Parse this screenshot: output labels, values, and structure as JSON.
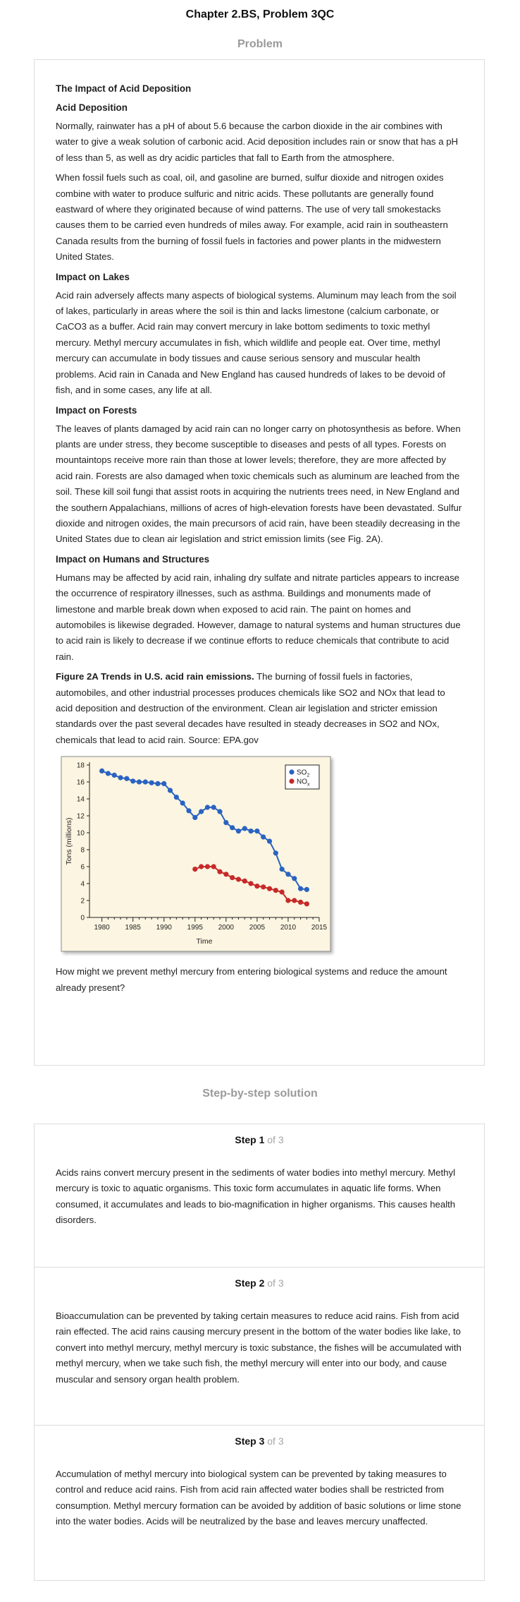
{
  "page": {
    "title": "Chapter 2.BS, Problem 3QC",
    "problem_heading": "Problem",
    "solution_heading": "Step-by-step solution"
  },
  "problem": {
    "main_title": "The Impact of Acid Deposition",
    "sections": [
      {
        "heading": "Acid Deposition",
        "paragraphs": [
          "Normally, rainwater has a pH of about 5.6 because the carbon dioxide in the air combines with water to give a weak solution of carbonic acid. Acid deposition includes rain or snow that has a pH of less than 5, as well as dry acidic particles that fall to Earth from the atmosphere.",
          "When fossil fuels such as coal, oil, and gasoline are burned, sulfur dioxide and nitrogen oxides combine with water to produce sulfuric and nitric acids. These pollutants are generally found eastward of where they originated because of wind patterns. The use of very tall smokestacks causes them to be carried even hundreds of miles away. For example, acid rain in southeastern Canada results from the burning of fossil fuels in factories and power plants in the midwestern United States."
        ]
      },
      {
        "heading": "Impact on Lakes",
        "paragraphs": [
          "Acid rain adversely affects many aspects of biological systems. Aluminum may leach from the soil of lakes, particularly in areas where the soil is thin and lacks limestone (calcium carbonate, or CaCO3 as a buffer. Acid rain may convert mercury in lake bottom sediments to toxic methyl mercury. Methyl mercury accumulates in fish, which wildlife and people eat. Over time, methyl mercury can accumulate in body tissues and cause serious sensory and muscular health problems. Acid rain in Canada and New England has caused hundreds of lakes to be devoid of fish, and in some cases, any life at all."
        ]
      },
      {
        "heading": "Impact on Forests",
        "paragraphs": [
          "The leaves of plants damaged by acid rain can no longer carry on photosynthesis as before. When plants are under stress, they become susceptible to diseases and pests of all types. Forests on mountaintops receive more rain than those at lower levels; therefore, they are more affected by acid rain. Forests are also damaged when toxic chemicals such as aluminum are leached from the soil. These kill soil fungi that assist roots in acquiring the nutrients trees need, in New England and the southern Appalachians, millions of acres of high-elevation forests have been devastated. Sulfur dioxide and nitrogen oxides, the main precursors of acid rain, have been steadily decreasing in the United States due to clean air legislation and strict emission limits (see Fig. 2A)."
        ]
      },
      {
        "heading": "Impact on Humans and Structures",
        "paragraphs": [
          "Humans may be affected by acid rain, inhaling dry sulfate and nitrate particles appears to increase the occurrence of respiratory illnesses, such as asthma. Buildings and monuments made of limestone and marble break down when exposed to acid rain. The paint on homes and automobiles is likewise degraded. However, damage to natural systems and human structures due to acid rain is likely to decrease if we continue efforts to reduce chemicals that contribute to acid rain."
        ]
      }
    ],
    "figure_caption_bold": "Figure 2A Trends in U.S. acid rain emissions.",
    "figure_caption_text": " The burning of fossil fuels in factories, automobiles, and other industrial processes produces chemicals like SO2 and NOx that lead to acid deposition and destruction of the environment. Clean air legislation and stricter emission standards over the past several decades have resulted in steady decreases in SO2 and NOx, chemicals that lead to acid rain. Source: EPA.gov",
    "question": "How might we prevent methyl mercury from entering biological systems and reduce the amount already present?"
  },
  "chart_data": {
    "type": "line",
    "xlabel": "Time",
    "ylabel": "Tons (millions)",
    "xlim": [
      1978,
      2015
    ],
    "ylim": [
      0,
      18
    ],
    "x_ticks": [
      1980,
      1985,
      1990,
      1995,
      2000,
      2005,
      2010,
      2015
    ],
    "y_ticks": [
      0,
      2,
      4,
      6,
      8,
      10,
      12,
      14,
      16,
      18
    ],
    "grid": false,
    "legend_position": "top-right",
    "series": [
      {
        "name": "SO2",
        "legend_main": "SO",
        "legend_sub": "2",
        "color": "#2a63c0",
        "x": [
          1980,
          1981,
          1982,
          1983,
          1984,
          1985,
          1986,
          1987,
          1988,
          1989,
          1990,
          1991,
          1992,
          1993,
          1994,
          1995,
          1996,
          1997,
          1998,
          1999,
          2000,
          2001,
          2002,
          2003,
          2004,
          2005,
          2006,
          2007,
          2008,
          2009,
          2010,
          2011,
          2012,
          2013
        ],
        "y": [
          17.3,
          17.0,
          16.8,
          16.5,
          16.4,
          16.1,
          16.0,
          16.0,
          15.9,
          15.8,
          15.8,
          15.0,
          14.2,
          13.5,
          12.6,
          11.8,
          12.5,
          13.0,
          13.0,
          12.5,
          11.2,
          10.6,
          10.2,
          10.5,
          10.2,
          10.2,
          9.5,
          9.0,
          7.6,
          5.7,
          5.1,
          4.6,
          3.4,
          3.3
        ]
      },
      {
        "name": "NOx",
        "legend_main": "NO",
        "legend_sub": "x",
        "color": "#c62a2a",
        "x": [
          1995,
          1996,
          1997,
          1998,
          1999,
          2000,
          2001,
          2002,
          2003,
          2004,
          2005,
          2006,
          2007,
          2008,
          2009,
          2010,
          2011,
          2012,
          2013
        ],
        "y": [
          5.7,
          6.0,
          6.0,
          6.0,
          5.4,
          5.1,
          4.7,
          4.5,
          4.3,
          4.0,
          3.7,
          3.6,
          3.4,
          3.2,
          3.0,
          2.0,
          2.0,
          1.8,
          1.6
        ]
      }
    ]
  },
  "solution": {
    "steps": [
      {
        "number": "Step 1",
        "of": " of 3",
        "text": "Acids rains convert mercury present in the sediments of water bodies into methyl mercury. Methyl mercury is toxic to aquatic organisms. This toxic form accumulates in aquatic life forms. When consumed, it accumulates and leads to bio-magnification in higher organisms. This causes health disorders."
      },
      {
        "number": "Step 2",
        "of": " of 3",
        "text": "Bioaccumulation can be prevented by taking certain measures to reduce acid rains. Fish from acid rain effected. The acid rains causing mercury present in the bottom of the water bodies like lake, to convert into methyl mercury, methyl mercury is toxic substance, the fishes will be accumulated with methyl mercury, when we take such fish, the methyl mercury will enter into our body, and cause muscular and sensory organ health problem."
      },
      {
        "number": "Step 3",
        "of": " of 3",
        "text": "Accumulation of methyl mercury into biological system can be prevented by taking measures to control and reduce acid rains. Fish from acid rain affected water bodies shall be restricted from consumption. Methyl mercury formation can be avoided by addition of basic solutions or lime stone into the water bodies. Acids will be neutralized by the base and leaves mercury unaffected."
      }
    ]
  }
}
